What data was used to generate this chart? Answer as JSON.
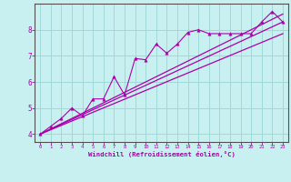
{
  "title": "",
  "xlabel": "Windchill (Refroidissement éolien,°C)",
  "ylabel": "",
  "bg_color": "#c8f0f0",
  "grid_color": "#a0d8d8",
  "line_color": "#aa00aa",
  "xlim": [
    -0.5,
    23.5
  ],
  "ylim": [
    3.7,
    9.0
  ],
  "xticks": [
    0,
    1,
    2,
    3,
    4,
    5,
    6,
    7,
    8,
    9,
    10,
    11,
    12,
    13,
    14,
    15,
    16,
    17,
    18,
    19,
    20,
    21,
    22,
    23
  ],
  "yticks": [
    4,
    5,
    6,
    7,
    8
  ],
  "series1_x": [
    0,
    1,
    2,
    3,
    4,
    5,
    6,
    7,
    8,
    9,
    10,
    11,
    12,
    13,
    14,
    15,
    16,
    17,
    18,
    19,
    20,
    21,
    22,
    23
  ],
  "series1_y": [
    4.0,
    4.3,
    4.6,
    5.0,
    4.7,
    5.35,
    5.35,
    6.2,
    5.5,
    6.9,
    6.85,
    7.45,
    7.1,
    7.45,
    7.9,
    8.0,
    7.85,
    7.85,
    7.85,
    7.85,
    7.85,
    8.3,
    8.7,
    8.3
  ],
  "line2_x": [
    0,
    23
  ],
  "line2_y": [
    4.0,
    8.6
  ],
  "line3_x": [
    0,
    23
  ],
  "line3_y": [
    4.0,
    8.3
  ],
  "line4_x": [
    0,
    23
  ],
  "line4_y": [
    4.0,
    7.85
  ]
}
